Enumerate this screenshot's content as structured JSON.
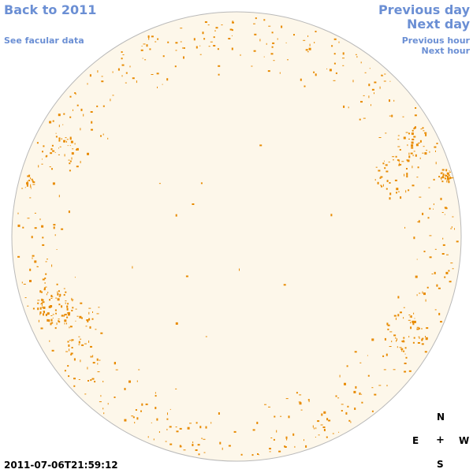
{
  "nav": {
    "back_label": "Back to 2011",
    "facular_label": "See facular data",
    "prev_day_label": "Previous day",
    "next_day_label": "Next day",
    "prev_hour_label": "Previous hour",
    "next_hour_label": "Next hour"
  },
  "compass": {
    "north": "N",
    "east": "E",
    "center": "+",
    "west": "W",
    "south": "S"
  },
  "timestamp": "2011-07-06T21:59:12",
  "colors": {
    "link": "#6b8fd4",
    "disk_fill": "#fdf7ea",
    "disk_edge": "#b9b9b9",
    "spot": "#e88a00"
  }
}
